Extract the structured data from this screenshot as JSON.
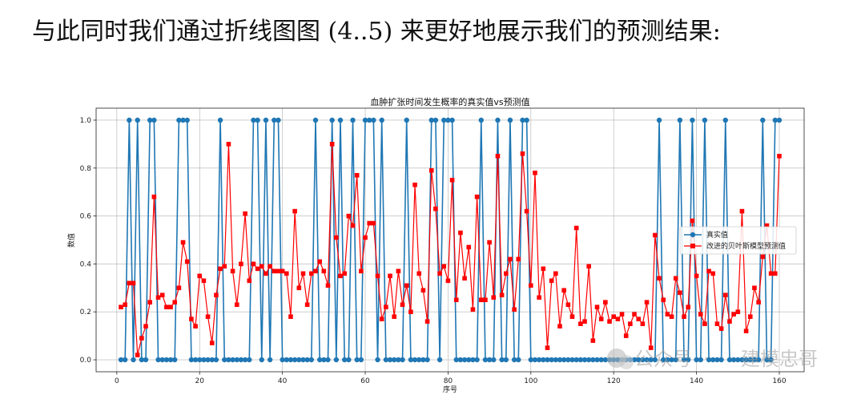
{
  "heading": "与此同时我们通过折线图图 (4..5) 来更好地展示我们的预测结果:",
  "watermark": {
    "platform": "公众号",
    "separator": "·",
    "name": "建模忠哥"
  },
  "colors": {
    "true_series": "#1f77b4",
    "pred_series": "#ff0000",
    "grid": "#b0b0b0",
    "axes": "#222222"
  },
  "chart_data": {
    "type": "line",
    "title": "血肿扩张时间发生概率的真实值vs预测值",
    "xlabel": "序号",
    "ylabel": "数值",
    "xlim": [
      -5,
      166
    ],
    "ylim": [
      -0.05,
      1.05
    ],
    "xticks": [
      0,
      20,
      40,
      60,
      80,
      100,
      120,
      140,
      160
    ],
    "yticks": [
      0.0,
      0.2,
      0.4,
      0.6,
      0.8,
      1.0
    ],
    "grid": true,
    "legend_position": "center-right",
    "x": [
      1,
      2,
      3,
      4,
      5,
      6,
      7,
      8,
      9,
      10,
      11,
      12,
      13,
      14,
      15,
      16,
      17,
      18,
      19,
      20,
      21,
      22,
      23,
      24,
      25,
      26,
      27,
      28,
      29,
      30,
      31,
      32,
      33,
      34,
      35,
      36,
      37,
      38,
      39,
      40,
      41,
      42,
      43,
      44,
      45,
      46,
      47,
      48,
      49,
      50,
      51,
      52,
      53,
      54,
      55,
      56,
      57,
      58,
      59,
      60,
      61,
      62,
      63,
      64,
      65,
      66,
      67,
      68,
      69,
      70,
      71,
      72,
      73,
      74,
      75,
      76,
      77,
      78,
      79,
      80,
      81,
      82,
      83,
      84,
      85,
      86,
      87,
      88,
      89,
      90,
      91,
      92,
      93,
      94,
      95,
      96,
      97,
      98,
      99,
      100,
      101,
      102,
      103,
      104,
      105,
      106,
      107,
      108,
      109,
      110,
      111,
      112,
      113,
      114,
      115,
      116,
      117,
      118,
      119,
      120,
      121,
      122,
      123,
      124,
      125,
      126,
      127,
      128,
      129,
      130,
      131,
      132,
      133,
      134,
      135,
      136,
      137,
      138,
      139,
      140,
      141,
      142,
      143,
      144,
      145,
      146,
      147,
      148,
      149,
      150,
      151,
      152,
      153,
      154,
      155,
      156,
      157,
      158,
      159,
      160
    ],
    "series": [
      {
        "name": "真实值",
        "marker": "circle",
        "values": [
          0,
          0,
          1,
          0,
          1,
          0,
          0,
          1,
          1,
          0,
          0,
          0,
          0,
          0,
          1,
          1,
          1,
          0,
          0,
          0,
          0,
          0,
          0,
          0,
          1,
          0,
          0,
          0,
          0,
          0,
          0,
          0,
          1,
          1,
          0,
          1,
          0,
          1,
          1,
          0,
          0,
          0,
          0,
          0,
          0,
          0,
          0,
          1,
          0,
          0,
          0,
          1,
          0,
          1,
          0,
          0,
          1,
          0,
          0,
          1,
          1,
          1,
          0,
          1,
          0,
          0,
          0,
          0,
          0,
          1,
          0,
          0,
          0,
          0,
          0,
          1,
          1,
          0,
          1,
          1,
          1,
          0,
          0,
          0,
          0,
          0,
          0,
          1,
          0,
          0,
          0,
          1,
          0,
          0,
          1,
          0,
          0,
          1,
          1,
          0,
          0,
          0,
          0,
          0,
          0,
          0,
          0,
          0,
          0,
          0,
          0,
          0,
          0,
          0,
          0,
          0,
          0,
          0,
          0,
          0,
          0,
          0,
          0,
          0,
          0,
          0,
          0,
          0,
          0,
          0,
          1,
          0,
          0,
          0,
          0,
          1,
          0,
          0,
          1,
          0,
          0,
          1,
          0,
          0,
          0,
          0,
          1,
          0,
          0,
          0,
          0,
          0,
          0,
          0,
          0,
          1,
          0,
          0,
          1,
          1
        ]
      },
      {
        "name": "改进的贝叶斯模型预测值",
        "marker": "square",
        "values": [
          0.22,
          0.23,
          0.32,
          0.32,
          0.02,
          0.09,
          0.14,
          0.24,
          0.68,
          0.26,
          0.27,
          0.22,
          0.22,
          0.24,
          0.3,
          0.49,
          0.41,
          0.17,
          0.14,
          0.35,
          0.33,
          0.18,
          0.07,
          0.27,
          0.38,
          0.39,
          0.9,
          0.37,
          0.23,
          0.4,
          0.61,
          0.33,
          0.4,
          0.38,
          0.39,
          0.36,
          0.39,
          0.37,
          0.37,
          0.37,
          0.36,
          0.18,
          0.62,
          0.3,
          0.36,
          0.23,
          0.36,
          0.37,
          0.41,
          0.37,
          0.31,
          0.9,
          0.51,
          0.35,
          0.36,
          0.6,
          0.56,
          0.77,
          0.37,
          0.51,
          0.57,
          0.57,
          0.35,
          0.17,
          0.22,
          0.35,
          0.18,
          0.37,
          0.23,
          0.31,
          0.2,
          0.73,
          0.36,
          0.29,
          0.16,
          0.79,
          0.63,
          0.36,
          0.39,
          0.33,
          0.75,
          0.25,
          0.53,
          0.34,
          0.47,
          0.21,
          0.68,
          0.25,
          0.25,
          0.49,
          0.26,
          0.85,
          0.27,
          0.36,
          0.42,
          0.21,
          0.42,
          0.86,
          0.62,
          0.31,
          0.78,
          0.26,
          0.38,
          0.05,
          0.33,
          0.36,
          0.14,
          0.29,
          0.23,
          0.18,
          0.55,
          0.15,
          0.16,
          0.39,
          0.08,
          0.22,
          0.17,
          0.24,
          0.16,
          0.18,
          0.17,
          0.19,
          0.1,
          0.15,
          0.19,
          0.17,
          0.15,
          0.24,
          0.05,
          0.52,
          0.34,
          0.25,
          0.19,
          0.18,
          0.34,
          0.28,
          0.18,
          0.22,
          0.58,
          0.35,
          0.19,
          0.15,
          0.37,
          0.36,
          0.15,
          0.13,
          0.27,
          0.16,
          0.19,
          0.2,
          0.62,
          0.12,
          0.18,
          0.3,
          0.24,
          0.43,
          0.56,
          0.36,
          0.36,
          0.85
        ]
      }
    ]
  }
}
